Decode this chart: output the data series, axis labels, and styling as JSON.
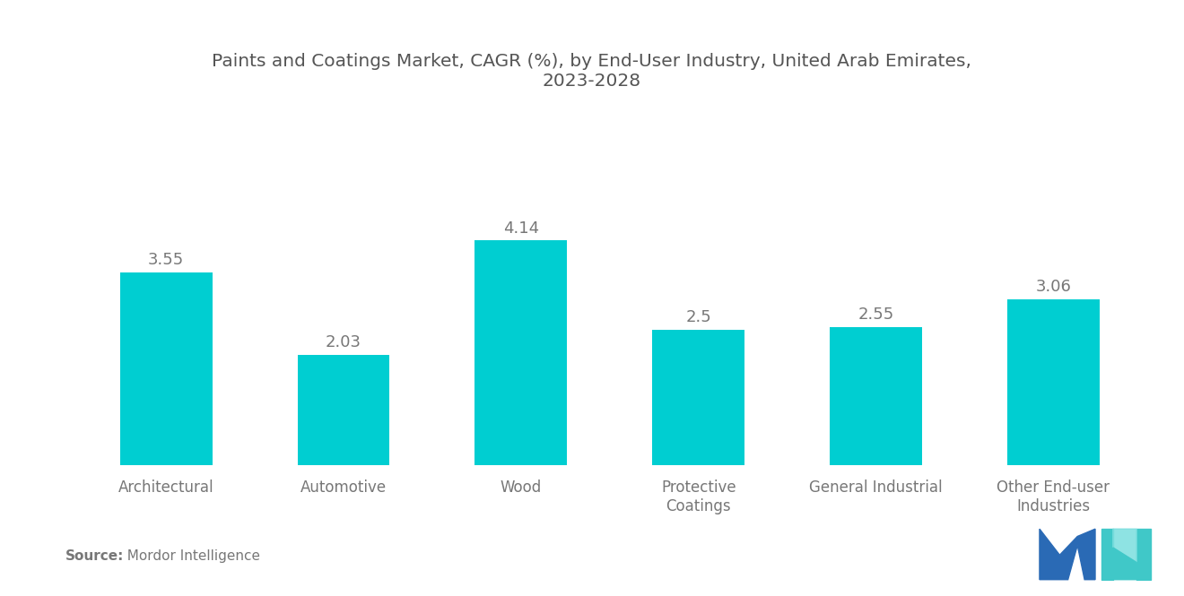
{
  "title": "Paints and Coatings Market, CAGR (%), by End-User Industry, United Arab Emirates,\n2023-2028",
  "categories": [
    "Architectural",
    "Automotive",
    "Wood",
    "Protective\nCoatings",
    "General Industrial",
    "Other End-user\nIndustries"
  ],
  "values": [
    3.55,
    2.03,
    4.14,
    2.5,
    2.55,
    3.06
  ],
  "bar_color": "#00CED1",
  "label_color": "#777777",
  "title_color": "#555555",
  "background_color": "#ffffff",
  "source_bold": "Source:",
  "source_rest": "  Mordor Intelligence",
  "ylim": [
    0,
    5.5
  ],
  "bar_width": 0.52,
  "title_fontsize": 14.5,
  "label_fontsize": 13,
  "tick_fontsize": 12,
  "source_fontsize": 11,
  "logo_blue": "#2a6ab5",
  "logo_teal": "#40c8c8"
}
